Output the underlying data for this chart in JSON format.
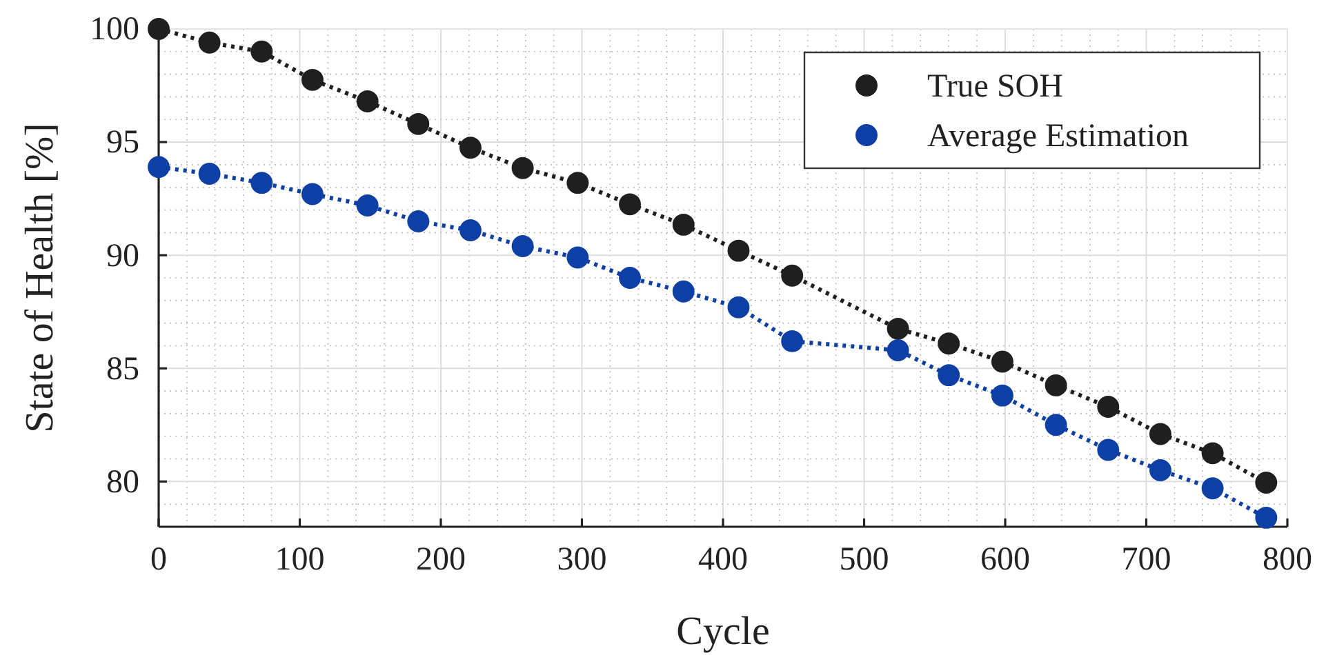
{
  "chart_data": {
    "type": "line",
    "xlabel": "Cycle",
    "ylabel": "State of Health [%]",
    "x": [
      0,
      36,
      73,
      109,
      148,
      184,
      221,
      258,
      297,
      334,
      372,
      411,
      449,
      524,
      560,
      598,
      636,
      673,
      710,
      747,
      785
    ],
    "series": [
      {
        "name": "True SOH",
        "color": "#1f1f1f",
        "values": [
          100,
          99.4,
          99.0,
          97.75,
          96.8,
          95.8,
          94.75,
          93.85,
          93.2,
          92.25,
          91.35,
          90.2,
          89.1,
          86.75,
          86.1,
          85.3,
          84.25,
          83.3,
          82.1,
          81.25,
          79.95
        ]
      },
      {
        "name": "Average Estimation",
        "color": "#0e3fa5",
        "values": [
          93.9,
          93.6,
          93.2,
          92.7,
          92.2,
          91.5,
          91.1,
          90.4,
          89.9,
          89.0,
          88.4,
          87.7,
          86.2,
          85.8,
          84.7,
          83.8,
          82.5,
          81.4,
          80.5,
          79.7,
          78.4
        ]
      }
    ],
    "xlim": [
      0,
      800
    ],
    "xticks": [
      0,
      100,
      200,
      300,
      400,
      500,
      600,
      700,
      800
    ],
    "ylim": [
      78,
      100
    ],
    "yticks": [
      80,
      85,
      90,
      95,
      100
    ],
    "grid": true,
    "legend": "top right",
    "marker": "circle",
    "line_style": "dotted"
  }
}
